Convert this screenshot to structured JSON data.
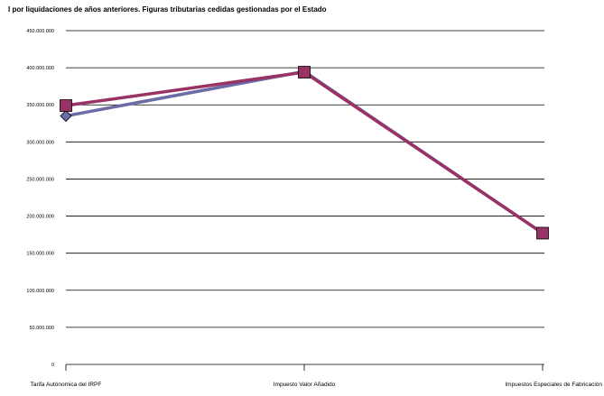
{
  "chart_data": {
    "type": "line",
    "title": "I por liquidaciones de años anteriores. Figuras tributarias cedidas gestionadas por el Estado",
    "categories": [
      "Tarifa Autónomica del IRPF",
      "Impuesto Valor Añadido",
      "Impuestos Especiales de Fabricación"
    ],
    "ylim": [
      0,
      450000000
    ],
    "yticks": [
      0,
      50000000,
      100000000,
      150000000,
      200000000,
      250000000,
      300000000,
      350000000,
      400000000,
      450000000
    ],
    "ytick_labels": [
      "0",
      "50.000.000",
      "100.000.000",
      "150.000.000",
      "200.000.000",
      "250.000.000",
      "300.000.000",
      "350.000.000",
      "400.000.000",
      "450.000.000"
    ],
    "grid": true,
    "series": [
      {
        "marker": "diamond",
        "color": "#6b6ba6",
        "values": [
          335000000,
          395000000,
          177000000
        ]
      },
      {
        "marker": "square",
        "color": "#993366",
        "values": [
          349000000,
          394000000,
          177000000
        ]
      }
    ]
  }
}
